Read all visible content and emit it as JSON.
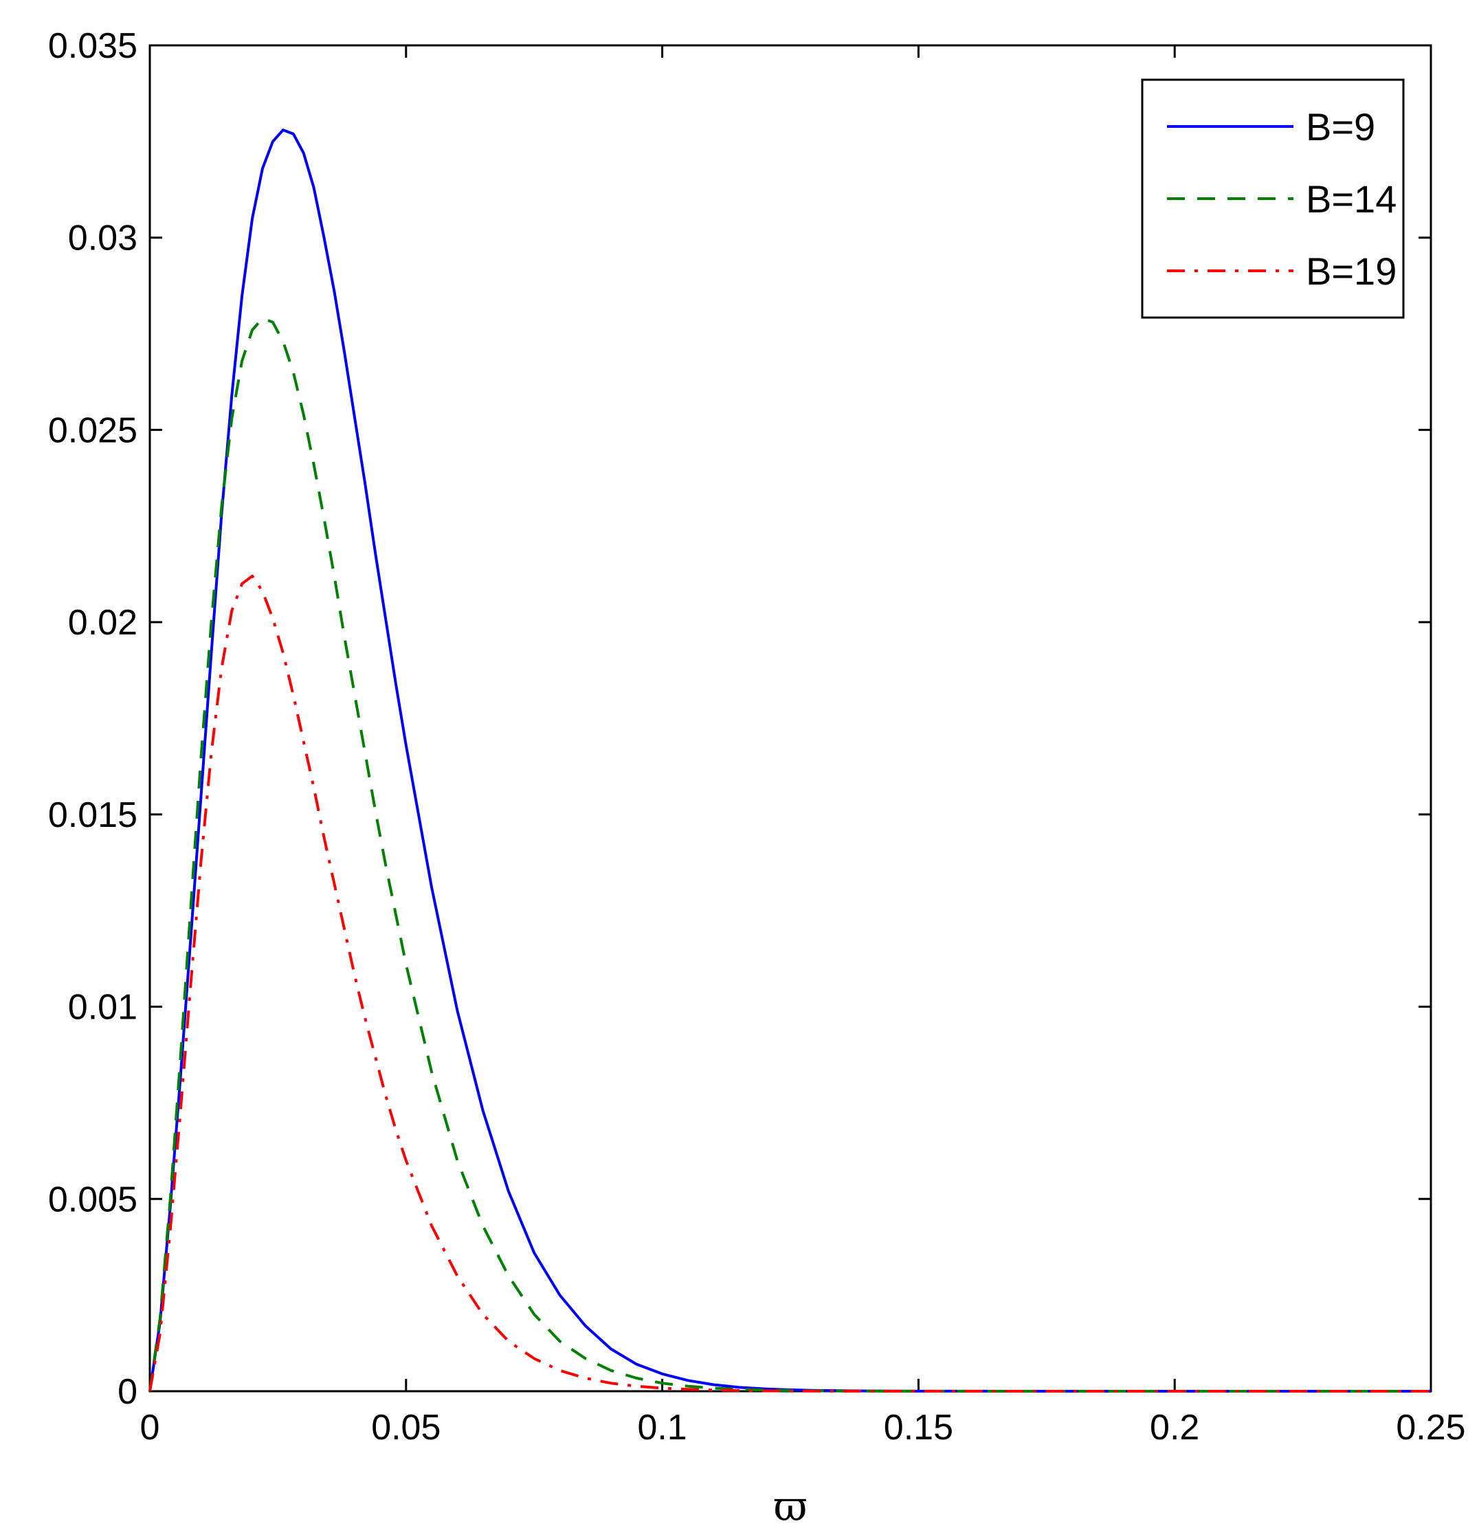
{
  "chart_data": {
    "type": "line",
    "title": "",
    "xlabel": "ϖ",
    "ylabel": "",
    "xlim": [
      0,
      0.25
    ],
    "ylim": [
      0,
      0.035
    ],
    "grid": false,
    "legend_position": "top-right",
    "x_ticks": [
      0,
      0.05,
      0.1,
      0.15,
      0.2,
      0.25
    ],
    "x_tick_labels": [
      "0",
      "0.05",
      "0.1",
      "0.15",
      "0.2",
      "0.25"
    ],
    "y_ticks": [
      0,
      0.005,
      0.01,
      0.015,
      0.02,
      0.025,
      0.03,
      0.035
    ],
    "y_tick_labels": [
      "0",
      "0.005",
      "0.01",
      "0.015",
      "0.02",
      "0.025",
      "0.03",
      "0.035"
    ],
    "x": [
      0,
      0.002,
      0.004,
      0.006,
      0.008,
      0.01,
      0.012,
      0.014,
      0.016,
      0.018,
      0.02,
      0.022,
      0.024,
      0.026,
      0.028,
      0.03,
      0.032,
      0.034,
      0.036,
      0.038,
      0.04,
      0.042,
      0.044,
      0.046,
      0.048,
      0.05,
      0.055,
      0.06,
      0.065,
      0.07,
      0.075,
      0.08,
      0.085,
      0.09,
      0.095,
      0.1,
      0.105,
      0.11,
      0.115,
      0.12,
      0.125,
      0.13,
      0.135,
      0.14,
      0.145,
      0.15,
      0.16,
      0.17,
      0.18,
      0.2,
      0.22,
      0.25
    ],
    "series": [
      {
        "name": "B=9",
        "color": "#0000ff",
        "dash": "solid",
        "values": [
          0,
          0.0018,
          0.0048,
          0.0082,
          0.0118,
          0.0155,
          0.0192,
          0.0228,
          0.0259,
          0.0285,
          0.0305,
          0.0318,
          0.0325,
          0.0328,
          0.0327,
          0.0322,
          0.0313,
          0.03,
          0.0286,
          0.027,
          0.0253,
          0.0236,
          0.0218,
          0.0201,
          0.0184,
          0.0168,
          0.0131,
          0.0099,
          0.0073,
          0.0052,
          0.0036,
          0.0025,
          0.0017,
          0.0011,
          0.0007,
          0.00045,
          0.00028,
          0.00017,
          0.0001,
          6e-05,
          3.5e-05,
          2e-05,
          1.2e-05,
          7e-06,
          4e-06,
          2.5e-06,
          1e-06,
          0,
          0,
          0,
          0,
          0
        ]
      },
      {
        "name": "B=14",
        "color": "#008000",
        "dash": "dashed",
        "values": [
          0,
          0.0019,
          0.005,
          0.0087,
          0.0126,
          0.0165,
          0.02,
          0.023,
          0.0253,
          0.0268,
          0.0276,
          0.0279,
          0.0278,
          0.0273,
          0.0265,
          0.0254,
          0.0241,
          0.0227,
          0.0212,
          0.0196,
          0.0181,
          0.0166,
          0.0151,
          0.0137,
          0.0124,
          0.0111,
          0.0083,
          0.006,
          0.0043,
          0.003,
          0.002,
          0.0013,
          0.00085,
          0.00054,
          0.00034,
          0.00021,
          0.00013,
          8e-05,
          5e-05,
          3e-05,
          1.8e-05,
          1e-05,
          6e-06,
          4e-06,
          2e-06,
          1e-06,
          0,
          0,
          0,
          0,
          0,
          0
        ]
      },
      {
        "name": "B=19",
        "color": "#ff0000",
        "dash": "dashdot",
        "values": [
          0,
          0.0015,
          0.0042,
          0.0073,
          0.0106,
          0.0138,
          0.0166,
          0.0188,
          0.0203,
          0.021,
          0.0212,
          0.0208,
          0.0201,
          0.0192,
          0.0181,
          0.0169,
          0.0157,
          0.0144,
          0.0132,
          0.012,
          0.0108,
          0.0097,
          0.0087,
          0.0077,
          0.0068,
          0.006,
          0.0043,
          0.003,
          0.002,
          0.0013,
          0.00085,
          0.00054,
          0.00034,
          0.00021,
          0.00013,
          8e-05,
          5e-05,
          3e-05,
          1.8e-05,
          1e-05,
          6e-06,
          4e-06,
          2e-06,
          1e-06,
          0,
          0,
          0,
          0,
          0,
          0,
          0,
          0
        ]
      }
    ]
  }
}
